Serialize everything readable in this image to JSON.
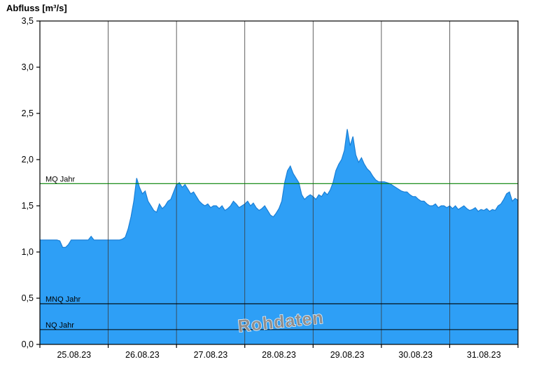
{
  "chart_data": {
    "type": "area",
    "title": "Abfluss [m³/s]",
    "ylabel": "Abfluss [m³/s]",
    "xlabel": "",
    "ylim": [
      0,
      3.5
    ],
    "y_tick_step": 0.5,
    "y_tick_values": [
      0,
      0.5,
      1.0,
      1.5,
      2.0,
      2.5,
      3.0,
      3.5
    ],
    "y_tick_labels": [
      "0,0",
      "0,5",
      "1,0",
      "1,5",
      "2,0",
      "2,5",
      "3,0",
      "3,5"
    ],
    "x_day_labels": [
      "25.08.23",
      "26.08.23",
      "27.08.23",
      "28.08.23",
      "29.08.23",
      "30.08.23",
      "31.08.23"
    ],
    "x_total_hours": 168,
    "grid": "vertical-day-lines",
    "legend": "none",
    "watermark": "Rohdaten",
    "colors": {
      "area_fill": "#2e9ff6",
      "area_stroke": "#1a7fd6",
      "grid_line": "#3a3a3a",
      "axis": "#000000",
      "watermark_fill": "#8f8f8f",
      "watermark_outline": "#ffffff"
    },
    "reference_lines": [
      {
        "label": "MQ Jahr",
        "value": 1.74,
        "color": "#008000"
      },
      {
        "label": "MNQ Jahr",
        "value": 0.44,
        "color": "#000000"
      },
      {
        "label": "NQ Jahr",
        "value": 0.16,
        "color": "#000000"
      }
    ],
    "series": [
      {
        "name": "Abfluss",
        "unit": "m³/s",
        "start": "25.08.23 00:00",
        "interval_hours": 1,
        "values": [
          1.13,
          1.13,
          1.13,
          1.13,
          1.13,
          1.13,
          1.13,
          1.12,
          1.05,
          1.05,
          1.08,
          1.13,
          1.13,
          1.13,
          1.13,
          1.13,
          1.13,
          1.13,
          1.17,
          1.13,
          1.13,
          1.13,
          1.13,
          1.13,
          1.13,
          1.13,
          1.13,
          1.13,
          1.13,
          1.14,
          1.16,
          1.25,
          1.38,
          1.55,
          1.8,
          1.7,
          1.63,
          1.66,
          1.55,
          1.5,
          1.45,
          1.43,
          1.52,
          1.47,
          1.5,
          1.55,
          1.57,
          1.65,
          1.73,
          1.75,
          1.7,
          1.73,
          1.68,
          1.63,
          1.65,
          1.6,
          1.55,
          1.52,
          1.5,
          1.52,
          1.48,
          1.5,
          1.5,
          1.47,
          1.5,
          1.45,
          1.47,
          1.5,
          1.55,
          1.52,
          1.48,
          1.5,
          1.52,
          1.55,
          1.5,
          1.53,
          1.48,
          1.45,
          1.47,
          1.5,
          1.45,
          1.4,
          1.38,
          1.42,
          1.47,
          1.55,
          1.75,
          1.88,
          1.93,
          1.85,
          1.8,
          1.75,
          1.62,
          1.57,
          1.6,
          1.62,
          1.6,
          1.57,
          1.62,
          1.6,
          1.65,
          1.62,
          1.67,
          1.75,
          1.88,
          1.95,
          2.0,
          2.1,
          2.33,
          2.15,
          2.25,
          2.05,
          1.97,
          2.02,
          1.95,
          1.9,
          1.87,
          1.82,
          1.78,
          1.76,
          1.76,
          1.76,
          1.75,
          1.74,
          1.72,
          1.7,
          1.68,
          1.66,
          1.65,
          1.65,
          1.62,
          1.6,
          1.6,
          1.57,
          1.55,
          1.55,
          1.52,
          1.5,
          1.5,
          1.52,
          1.48,
          1.5,
          1.5,
          1.48,
          1.5,
          1.47,
          1.5,
          1.46,
          1.48,
          1.5,
          1.47,
          1.45,
          1.46,
          1.48,
          1.44,
          1.46,
          1.45,
          1.47,
          1.44,
          1.46,
          1.45,
          1.5,
          1.52,
          1.57,
          1.63,
          1.65,
          1.55,
          1.58,
          1.56
        ]
      }
    ]
  }
}
